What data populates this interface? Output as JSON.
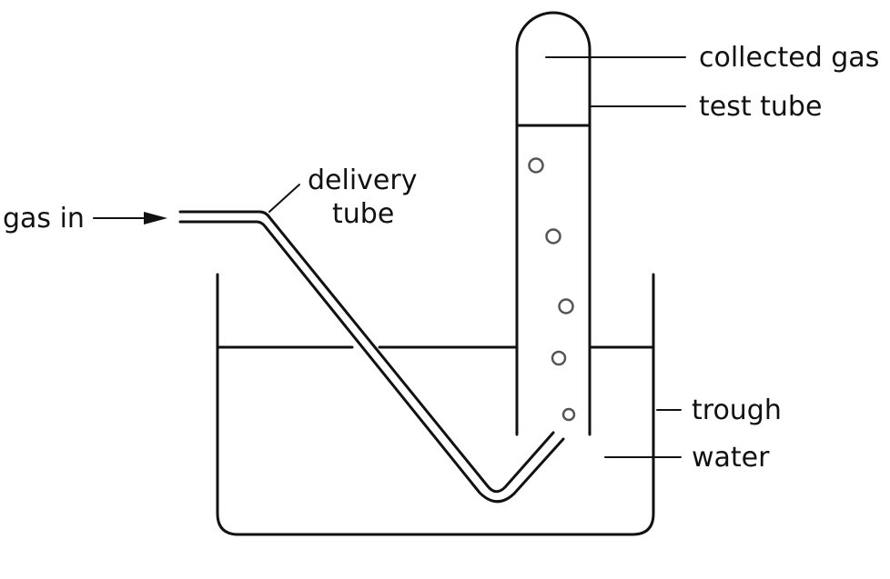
{
  "labels": {
    "gas_in": "gas in",
    "delivery_tube_line1": "delivery",
    "delivery_tube_line2": "tube",
    "collected_gas": "collected gas",
    "test_tube": "test tube",
    "trough": "trough",
    "water": "water"
  },
  "colors": {
    "line": "#111111",
    "bubble": "#555555",
    "background": "#ffffff"
  }
}
